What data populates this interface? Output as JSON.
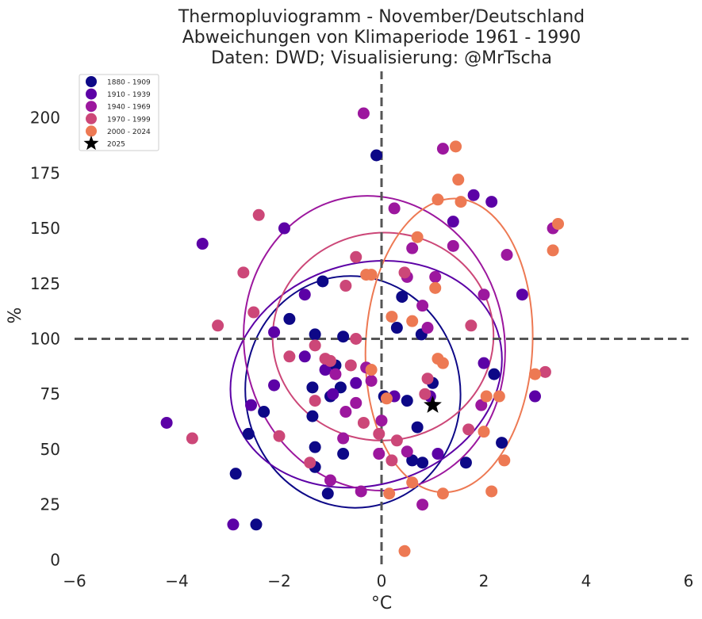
{
  "chart_data": {
    "type": "scatter",
    "title": [
      "Thermopluviogramm - November/Deutschland",
      "Abweichungen von Klimaperiode 1961 - 1990",
      "Daten: DWD; Visualisierung: @MrTscha"
    ],
    "xlabel": "°C",
    "ylabel": "%",
    "xlim": [
      -6,
      6
    ],
    "ylim": [
      -2,
      221
    ],
    "xticks": [
      -6,
      -4,
      -2,
      0,
      2,
      4,
      6
    ],
    "xtick_labels": [
      "−6",
      "−4",
      "−2",
      "0",
      "2",
      "4",
      "6"
    ],
    "yticks": [
      0,
      25,
      50,
      75,
      100,
      125,
      150,
      175,
      200
    ],
    "ytick_labels": [
      "0",
      "25",
      "50",
      "75",
      "100",
      "125",
      "150",
      "175",
      "200"
    ],
    "grid": false,
    "legend_position": "top-left",
    "reference_lines": {
      "x": 0,
      "y": 100,
      "style": "dashed",
      "color": "#555555"
    },
    "series": [
      {
        "name": "1880 - 1909",
        "color": "#0d0887",
        "points": [
          [
            -0.1,
            183
          ],
          [
            -1.15,
            126
          ],
          [
            0.4,
            119
          ],
          [
            0.3,
            105
          ],
          [
            0.78,
            102
          ],
          [
            -1.3,
            102
          ],
          [
            -0.75,
            101
          ],
          [
            -1.8,
            109
          ],
          [
            -0.9,
            88
          ],
          [
            -0.8,
            78
          ],
          [
            -1.35,
            78
          ],
          [
            -1.35,
            65
          ],
          [
            -1.0,
            74
          ],
          [
            -0.75,
            48
          ],
          [
            -1.3,
            51
          ],
          [
            -1.3,
            42
          ],
          [
            -1.05,
            30
          ],
          [
            -2.6,
            57
          ],
          [
            -2.85,
            39
          ],
          [
            -2.45,
            16
          ],
          [
            -2.3,
            67
          ],
          [
            0.8,
            44
          ],
          [
            0.6,
            45
          ],
          [
            1.0,
            80
          ],
          [
            0.5,
            72
          ],
          [
            0.05,
            74
          ],
          [
            2.2,
            84
          ],
          [
            2.35,
            53
          ],
          [
            1.65,
            44
          ],
          [
            0.7,
            60
          ]
        ],
        "ellipse": {
          "center": [
            -0.56,
            76
          ],
          "rx": 2.1,
          "ry": 52.5,
          "angle_deg": -8
        }
      },
      {
        "name": "1910 - 1939",
        "color": "#5c01a6",
        "points": [
          [
            -3.5,
            143
          ],
          [
            -1.9,
            150
          ],
          [
            -4.2,
            62
          ],
          [
            -2.9,
            16
          ],
          [
            -2.1,
            103
          ],
          [
            -2.1,
            79
          ],
          [
            -2.55,
            70
          ],
          [
            1.8,
            165
          ],
          [
            2.15,
            162
          ],
          [
            1.4,
            153
          ],
          [
            2.75,
            120
          ],
          [
            2.0,
            89
          ],
          [
            3.0,
            74
          ],
          [
            1.1,
            48
          ],
          [
            0.95,
            74
          ],
          [
            -1.5,
            92
          ],
          [
            -1.5,
            120
          ],
          [
            -0.5,
            80
          ],
          [
            -1.1,
            86
          ],
          [
            -0.95,
            75
          ],
          [
            0.25,
            74
          ]
        ],
        "ellipse": {
          "center": [
            -0.3,
            84
          ],
          "rx": 2.7,
          "ry": 50,
          "angle_deg": -18
        }
      },
      {
        "name": "1940 - 1969",
        "color": "#9c179e",
        "points": [
          [
            -0.35,
            202
          ],
          [
            1.2,
            186
          ],
          [
            0.25,
            159
          ],
          [
            0.6,
            141
          ],
          [
            0.8,
            115
          ],
          [
            1.05,
            128
          ],
          [
            1.4,
            142
          ],
          [
            2.45,
            138
          ],
          [
            3.35,
            150
          ],
          [
            2.0,
            120
          ],
          [
            1.95,
            70
          ],
          [
            0.9,
            105
          ],
          [
            0.5,
            128
          ],
          [
            0.5,
            49
          ],
          [
            -0.4,
            31
          ],
          [
            -0.05,
            48
          ],
          [
            0.8,
            25
          ],
          [
            -0.75,
            55
          ],
          [
            -1.0,
            36
          ],
          [
            -0.3,
            87
          ],
          [
            -0.2,
            81
          ],
          [
            0.0,
            63
          ],
          [
            -0.7,
            67
          ],
          [
            -0.5,
            71
          ],
          [
            -0.9,
            84
          ]
        ],
        "ellipse": {
          "center": [
            -0.14,
            98
          ],
          "rx": 2.54,
          "ry": 67,
          "angle_deg": -12
        }
      },
      {
        "name": "1970 - 1999",
        "color": "#cc4778",
        "points": [
          [
            -2.4,
            156
          ],
          [
            -2.7,
            130
          ],
          [
            -2.5,
            112
          ],
          [
            -3.2,
            106
          ],
          [
            -3.7,
            55
          ],
          [
            -2.0,
            56
          ],
          [
            -1.8,
            92
          ],
          [
            -1.3,
            97
          ],
          [
            -1.3,
            72
          ],
          [
            -1.4,
            44
          ],
          [
            -1.0,
            90
          ],
          [
            -1.1,
            91
          ],
          [
            -0.6,
            88
          ],
          [
            -0.5,
            137
          ],
          [
            -0.7,
            124
          ],
          [
            -0.5,
            100
          ],
          [
            0.45,
            130
          ],
          [
            0.9,
            82
          ],
          [
            1.75,
            106
          ],
          [
            1.7,
            59
          ],
          [
            3.2,
            85
          ],
          [
            0.2,
            45
          ],
          [
            0.3,
            54
          ],
          [
            -0.35,
            62
          ],
          [
            -0.05,
            57
          ],
          [
            0.85,
            75
          ]
        ],
        "ellipse": {
          "center": [
            0.03,
            101
          ],
          "rx": 2.16,
          "ry": 47,
          "angle_deg": -5
        }
      },
      {
        "name": "2000 - 2024",
        "color": "#ed7953",
        "points": [
          [
            1.45,
            187
          ],
          [
            1.5,
            172
          ],
          [
            1.1,
            163
          ],
          [
            1.55,
            162
          ],
          [
            3.35,
            140
          ],
          [
            3.45,
            152
          ],
          [
            0.7,
            146
          ],
          [
            -0.2,
            129
          ],
          [
            -0.3,
            129
          ],
          [
            0.2,
            110
          ],
          [
            1.05,
            123
          ],
          [
            1.2,
            89
          ],
          [
            1.1,
            91
          ],
          [
            0.6,
            108
          ],
          [
            -0.2,
            86
          ],
          [
            0.1,
            73
          ],
          [
            3.0,
            84
          ],
          [
            2.05,
            74
          ],
          [
            2.3,
            74
          ],
          [
            2.0,
            58
          ],
          [
            2.4,
            45
          ],
          [
            2.15,
            31
          ],
          [
            1.2,
            30
          ],
          [
            0.6,
            35
          ],
          [
            0.45,
            4
          ],
          [
            0.15,
            30
          ]
        ],
        "ellipse": {
          "center": [
            1.32,
            97
          ],
          "rx": 1.63,
          "ry": 66.5,
          "angle_deg": 3
        }
      },
      {
        "name": "2025",
        "color": "#000000",
        "marker": "star",
        "points": [
          [
            1.0,
            70
          ]
        ]
      }
    ]
  }
}
